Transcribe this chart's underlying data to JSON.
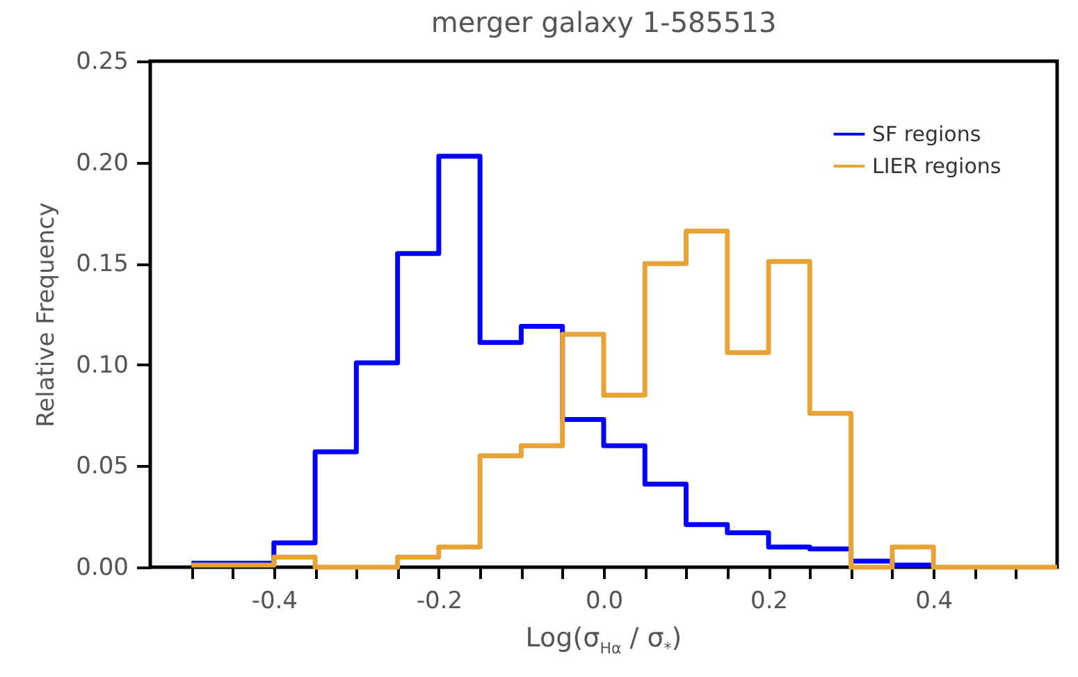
{
  "chart_data": {
    "type": "histogram",
    "title": "merger galaxy 1-585513",
    "xlabel": "Log(σ$_{Hα}$ / σ$_{*}$)",
    "ylabel": "Relative Frequency",
    "bins": [
      -0.5,
      -0.45,
      -0.4,
      -0.35,
      -0.3,
      -0.25,
      -0.2,
      -0.15,
      -0.1,
      -0.05,
      0.0,
      0.05,
      0.1,
      0.15,
      0.2,
      0.25,
      0.3,
      0.35,
      0.4,
      0.45,
      0.5,
      0.55
    ],
    "series": [
      {
        "name": "SF regions",
        "color": "#0000ff",
        "bins": [
          -0.5,
          -0.45,
          -0.4,
          -0.35,
          -0.3,
          -0.25,
          -0.2,
          -0.15,
          -0.1,
          -0.05,
          0.0,
          0.05,
          0.1,
          0.15,
          0.2,
          0.25,
          0.3,
          0.35,
          0.4
        ],
        "values": [
          0.002,
          0.002,
          0.012,
          0.057,
          0.101,
          0.155,
          0.203,
          0.111,
          0.119,
          0.073,
          0.06,
          0.041,
          0.021,
          0.017,
          0.01,
          0.009,
          0.003,
          0.001
        ]
      },
      {
        "name": "LIER regions",
        "color": "#e8a336",
        "values": [
          0.001,
          0.001,
          0.005,
          0.0,
          0.0,
          0.005,
          0.01,
          0.055,
          0.06,
          0.115,
          0.085,
          0.15,
          0.166,
          0.106,
          0.151,
          0.076,
          0.0,
          0.01,
          0.0,
          0.0,
          0.0
        ]
      }
    ],
    "xlim": [
      -0.55,
      0.55
    ],
    "xticks": [
      {
        "value": -0.5,
        "label": null
      },
      {
        "value": -0.45,
        "label": null
      },
      -0.4,
      {
        "value": -0.35,
        "label": null
      },
      {
        "value": -0.3,
        "label": null
      },
      {
        "value": -0.25,
        "label": null
      },
      -0.2,
      {
        "value": -0.15,
        "label": null
      },
      {
        "value": -0.1,
        "label": null
      },
      {
        "value": -0.05,
        "label": null
      },
      {
        "value": 0,
        "label": "0.0"
      },
      {
        "value": 0.05,
        "label": null
      },
      {
        "value": 0.1,
        "label": null
      },
      {
        "value": 0.15,
        "label": null
      },
      0.2,
      {
        "value": 0.25,
        "label": null
      },
      {
        "value": 0.3,
        "label": null
      },
      {
        "value": 0.35,
        "label": null
      },
      0.4,
      {
        "value": 0.45,
        "label": null
      },
      {
        "value": 0.5,
        "label": null
      }
    ],
    "ylim": [
      0,
      0.25
    ],
    "yticks": [
      {
        "value": 0,
        "label": "0.00"
      },
      0.05,
      {
        "value": 0.1,
        "label": "0.10"
      },
      0.15,
      {
        "value": 0.2,
        "label": "0.20"
      },
      0.25
    ],
    "legend": "top right",
    "grid": false
  }
}
